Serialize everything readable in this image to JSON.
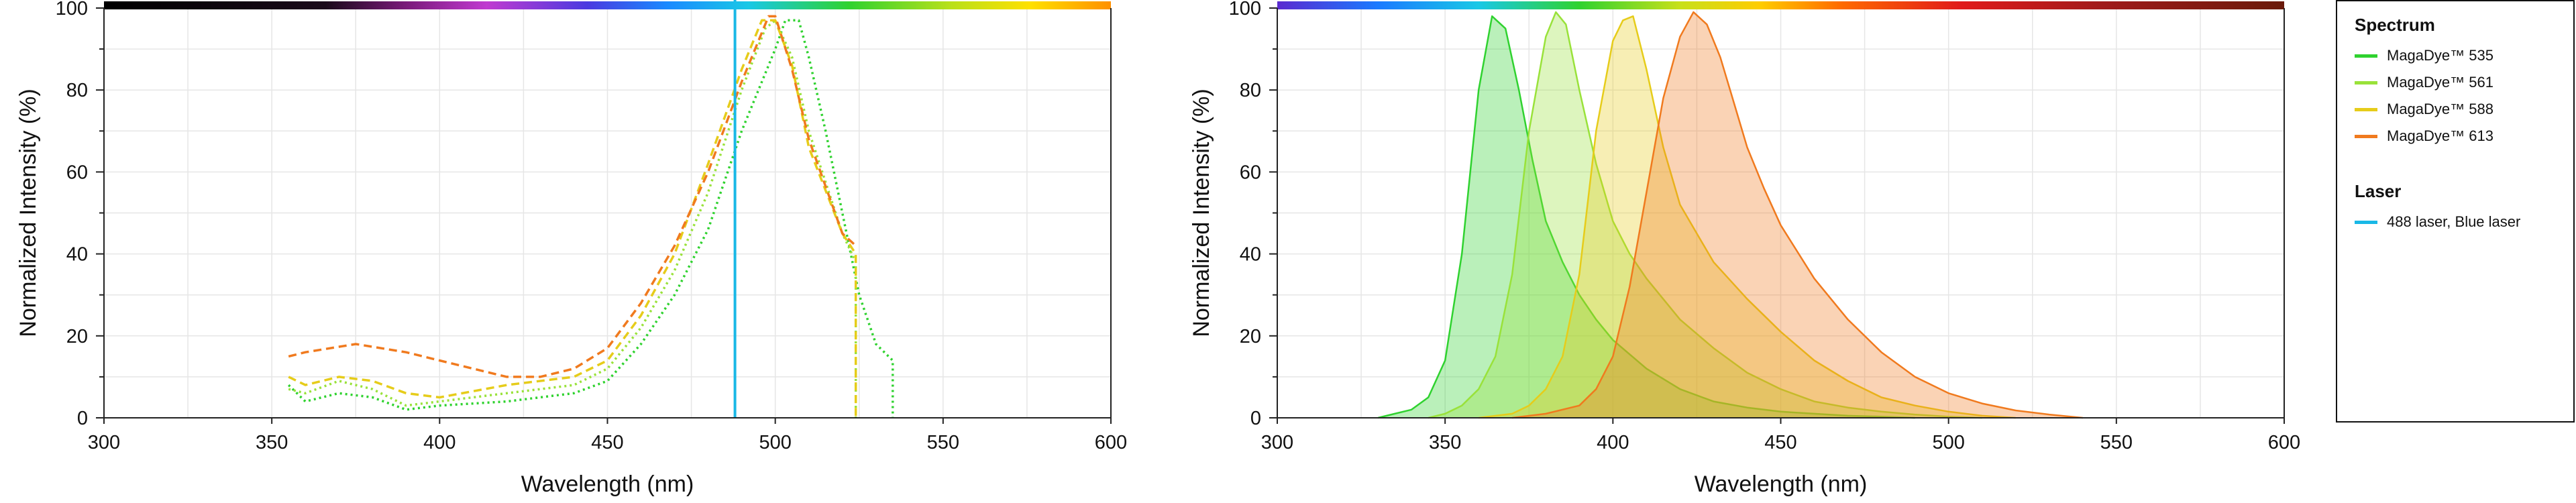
{
  "chart_data": [
    {
      "type": "line",
      "title": "",
      "xlabel": "Wavelength (nm)",
      "ylabel": "Normalized Intensity (%)",
      "xlim": [
        300,
        600
      ],
      "ylim": [
        0,
        100
      ],
      "xticks": [
        300,
        350,
        400,
        450,
        500,
        550,
        600
      ],
      "yticks": [
        0,
        20,
        40,
        60,
        80,
        100
      ],
      "grid": true,
      "top_color_bar": "wavelength-gradient",
      "series": [
        {
          "name": "MagaDye™ 535",
          "color": "#2fd22f",
          "style": "dotted",
          "x": [
            355,
            360,
            370,
            380,
            390,
            400,
            420,
            440,
            450,
            460,
            470,
            480,
            490,
            500,
            503,
            507,
            510,
            515,
            520,
            525,
            530,
            535,
            535
          ],
          "y": [
            8,
            4,
            6,
            5,
            2,
            3,
            4,
            6,
            9,
            18,
            30,
            46,
            70,
            90,
            97,
            97,
            88,
            70,
            50,
            30,
            18,
            14,
            0
          ]
        },
        {
          "name": "MagaDye™ 561",
          "color": "#99e23a",
          "style": "dotted",
          "x": [
            355,
            360,
            370,
            380,
            390,
            400,
            420,
            440,
            450,
            460,
            470,
            480,
            490,
            497,
            500,
            505,
            510,
            520,
            524,
            524
          ],
          "y": [
            7,
            6,
            9,
            7,
            3,
            4,
            6,
            8,
            12,
            22,
            36,
            55,
            80,
            95,
            97,
            88,
            70,
            45,
            38,
            0
          ]
        },
        {
          "name": "MagaDye™ 588",
          "color": "#e6cc1a",
          "style": "dashed",
          "x": [
            355,
            360,
            370,
            380,
            390,
            400,
            420,
            440,
            450,
            460,
            470,
            480,
            490,
            496,
            500,
            505,
            510,
            520,
            524,
            524
          ],
          "y": [
            10,
            8,
            10,
            9,
            6,
            5,
            8,
            10,
            14,
            25,
            40,
            62,
            85,
            97,
            97,
            86,
            66,
            45,
            40,
            0
          ]
        },
        {
          "name": "MagaDye™ 613",
          "color": "#f07a1e",
          "style": "dashed",
          "x": [
            355,
            360,
            375,
            390,
            400,
            410,
            420,
            430,
            440,
            450,
            460,
            470,
            480,
            490,
            498,
            500,
            505,
            510,
            520,
            524
          ],
          "y": [
            15,
            16,
            18,
            16,
            14,
            12,
            10,
            10,
            12,
            17,
            28,
            42,
            60,
            82,
            98,
            98,
            85,
            68,
            45,
            42
          ]
        },
        {
          "name": "488 laser, Blue laser",
          "color": "#19b8e6",
          "style": "solid",
          "x": [
            488,
            488
          ],
          "y": [
            0,
            102
          ]
        }
      ]
    },
    {
      "type": "area",
      "title": "",
      "xlabel": "Wavelength (nm)",
      "ylabel": "Normalized Intensity (%)",
      "xlim": [
        300,
        600
      ],
      "ylim": [
        0,
        100
      ],
      "xticks": [
        300,
        350,
        400,
        450,
        500,
        550,
        600
      ],
      "yticks": [
        0,
        20,
        40,
        60,
        80,
        100
      ],
      "grid": true,
      "top_color_bar": "emission-gradient",
      "series": [
        {
          "name": "MagaDye™ 535",
          "color": "#2fd22f",
          "x": [
            330,
            335,
            340,
            345,
            350,
            355,
            360,
            364,
            368,
            372,
            376,
            380,
            385,
            390,
            395,
            400,
            410,
            420,
            430,
            440,
            450,
            460,
            470,
            480,
            490
          ],
          "y": [
            0,
            1,
            2,
            5,
            14,
            40,
            80,
            98,
            95,
            80,
            63,
            48,
            38,
            30,
            24,
            19,
            12,
            7,
            4,
            2.5,
            1.5,
            1,
            0.5,
            0.3,
            0
          ]
        },
        {
          "name": "MagaDye™ 561",
          "color": "#99e23a",
          "x": [
            345,
            350,
            355,
            360,
            365,
            370,
            375,
            380,
            383,
            386,
            390,
            395,
            400,
            405,
            410,
            420,
            430,
            440,
            450,
            460,
            470,
            480,
            490,
            500,
            510
          ],
          "y": [
            0,
            1,
            3,
            7,
            15,
            35,
            70,
            93,
            99,
            96,
            80,
            62,
            48,
            40,
            34,
            24,
            17,
            11,
            7,
            4,
            2.5,
            1.5,
            0.8,
            0.3,
            0
          ]
        },
        {
          "name": "MagaDye™ 588",
          "color": "#e6cc1a",
          "x": [
            360,
            370,
            375,
            380,
            385,
            390,
            395,
            400,
            403,
            406,
            410,
            415,
            420,
            425,
            430,
            440,
            450,
            460,
            470,
            480,
            490,
            500,
            510,
            520
          ],
          "y": [
            0,
            1,
            3,
            7,
            15,
            35,
            70,
            92,
            97,
            98,
            85,
            66,
            52,
            45,
            38,
            29,
            21,
            14,
            9,
            5,
            3,
            1.5,
            0.5,
            0
          ]
        },
        {
          "name": "MagaDye™ 613",
          "color": "#f07a1e",
          "x": [
            370,
            380,
            390,
            395,
            400,
            405,
            410,
            415,
            420,
            424,
            428,
            432,
            436,
            440,
            445,
            450,
            460,
            470,
            480,
            490,
            500,
            510,
            520,
            530,
            540
          ],
          "y": [
            0,
            1,
            3,
            7,
            15,
            32,
            55,
            78,
            93,
            99,
            96,
            88,
            77,
            66,
            56,
            47,
            34,
            24,
            16,
            10,
            6,
            3.5,
            1.8,
            0.8,
            0
          ]
        }
      ]
    }
  ],
  "legend": {
    "spectrum_heading": "Spectrum",
    "spectrum_items": [
      {
        "label": "MagaDye™ 535",
        "color": "#2fd22f"
      },
      {
        "label": "MagaDye™ 561",
        "color": "#99e23a"
      },
      {
        "label": "MagaDye™ 588",
        "color": "#e6cc1a"
      },
      {
        "label": "MagaDye™ 613",
        "color": "#f07a1e"
      }
    ],
    "laser_heading": "Laser",
    "laser_items": [
      {
        "label": "488 laser, Blue laser",
        "color": "#19b8e6"
      }
    ]
  }
}
